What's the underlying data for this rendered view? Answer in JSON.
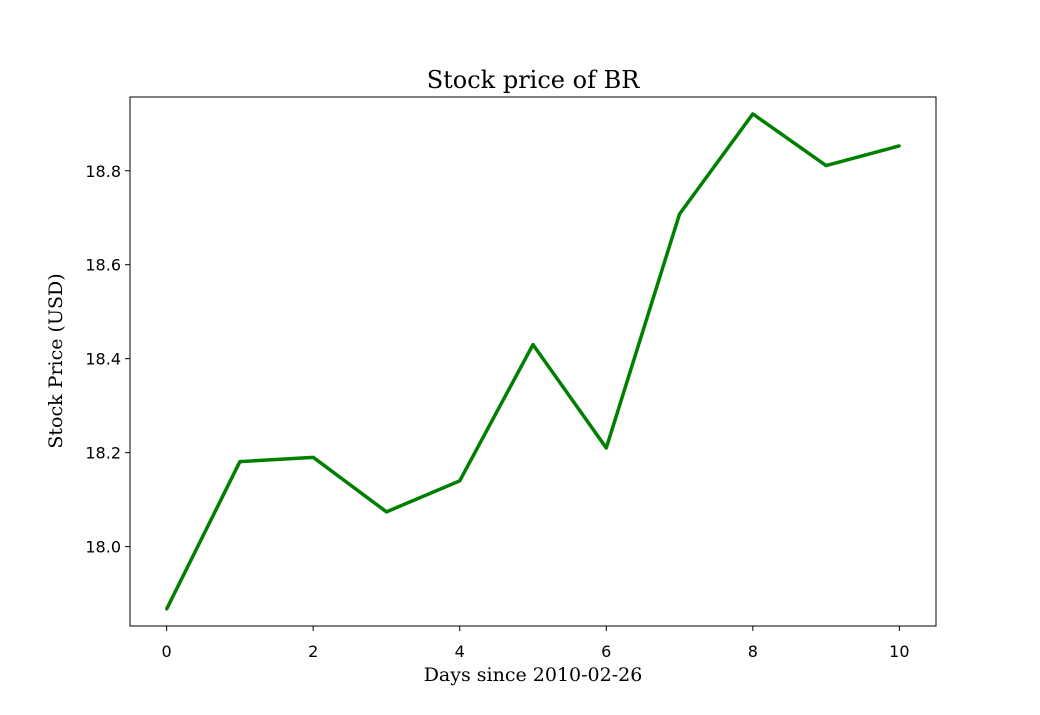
{
  "chart_data": {
    "type": "line",
    "title": "Stock price of BR",
    "xlabel": "Days since 2010-02-26",
    "ylabel": "Stock Price (USD)",
    "x": [
      0,
      1,
      2,
      3,
      4,
      5,
      6,
      7,
      8,
      9,
      10
    ],
    "series": [
      {
        "values": [
          17.867,
          18.181,
          18.19,
          18.074,
          18.14,
          18.43,
          18.21,
          18.708,
          18.921,
          18.811,
          18.853
        ],
        "color": "#008000"
      }
    ],
    "xlim": [
      -0.5,
      10.5
    ],
    "ylim": [
      17.831,
      18.957
    ],
    "xticks": [
      0,
      2,
      4,
      6,
      8,
      10
    ],
    "xtick_labels": [
      "0",
      "2",
      "4",
      "6",
      "8",
      "10"
    ],
    "yticks": [
      18.0,
      18.2,
      18.4,
      18.6,
      18.8
    ],
    "ytick_labels": [
      "18.0",
      "18.2",
      "18.4",
      "18.6",
      "18.8"
    ],
    "grid": false,
    "legend": "none"
  }
}
